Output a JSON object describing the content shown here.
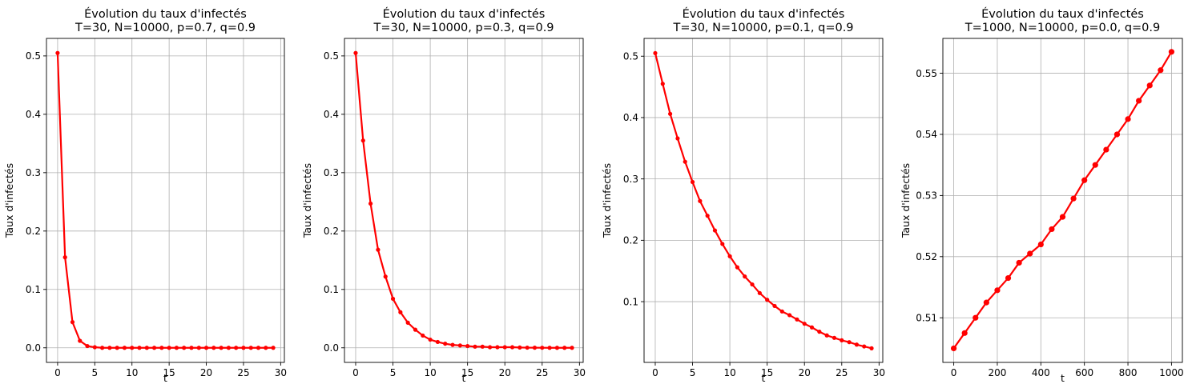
{
  "chart_data": [
    {
      "type": "line",
      "title": "Évolution du taux d'infectés",
      "subtitle": "T=30, N=10000, p=0.7, q=0.9",
      "xlabel": "t",
      "ylabel": "Taux d'infectés",
      "xlim": [
        -1.5,
        30.5
      ],
      "ylim": [
        -0.025,
        0.53
      ],
      "xticks": [
        0,
        5,
        10,
        15,
        20,
        25,
        30
      ],
      "yticks": [
        0.0,
        0.1,
        0.2,
        0.3,
        0.4,
        0.5
      ],
      "ytick_labels": [
        "0.0",
        "0.1",
        "0.2",
        "0.3",
        "0.4",
        "0.5"
      ],
      "grid": true,
      "color": "#ff0000",
      "marker": true,
      "series": [
        {
          "x": [
            0,
            1,
            2,
            3,
            4,
            5,
            6,
            7,
            8,
            9,
            10,
            11,
            12,
            13,
            14,
            15,
            16,
            17,
            18,
            19,
            20,
            21,
            22,
            23,
            24,
            25,
            26,
            27,
            28,
            29
          ],
          "values": [
            0.505,
            0.155,
            0.044,
            0.012,
            0.003,
            0.001,
            0,
            0,
            0,
            0,
            0,
            0,
            0,
            0,
            0,
            0,
            0,
            0,
            0,
            0,
            0,
            0,
            0,
            0,
            0,
            0,
            0,
            0,
            0,
            0
          ]
        }
      ]
    },
    {
      "type": "line",
      "title": "Évolution du taux d'infectés",
      "subtitle": "T=30, N=10000, p=0.3, q=0.9",
      "xlabel": "t",
      "ylabel": "Taux d'infectés",
      "xlim": [
        -1.5,
        30.5
      ],
      "ylim": [
        -0.025,
        0.53
      ],
      "xticks": [
        0,
        5,
        10,
        15,
        20,
        25,
        30
      ],
      "yticks": [
        0.0,
        0.1,
        0.2,
        0.3,
        0.4,
        0.5
      ],
      "ytick_labels": [
        "0.0",
        "0.1",
        "0.2",
        "0.3",
        "0.4",
        "0.5"
      ],
      "grid": true,
      "color": "#ff0000",
      "marker": true,
      "series": [
        {
          "x": [
            0,
            1,
            2,
            3,
            4,
            5,
            6,
            7,
            8,
            9,
            10,
            11,
            12,
            13,
            14,
            15,
            16,
            17,
            18,
            19,
            20,
            21,
            22,
            23,
            24,
            25,
            26,
            27,
            28,
            29
          ],
          "values": [
            0.505,
            0.355,
            0.247,
            0.168,
            0.122,
            0.084,
            0.061,
            0.043,
            0.031,
            0.021,
            0.014,
            0.01,
            0.007,
            0.005,
            0.004,
            0.003,
            0.002,
            0.002,
            0.001,
            0.001,
            0.001,
            0.001,
            0.0005,
            0.0003,
            0.0002,
            0.0001,
            0,
            0,
            0,
            0
          ]
        }
      ]
    },
    {
      "type": "line",
      "title": "Évolution du taux d'infectés",
      "subtitle": "T=30, N=10000, p=0.1, q=0.9",
      "xlabel": "t",
      "ylabel": "Taux d'infectés",
      "xlim": [
        -1.5,
        30.5
      ],
      "ylim": [
        0.001,
        0.529
      ],
      "xticks": [
        0,
        5,
        10,
        15,
        20,
        25,
        30
      ],
      "yticks": [
        0.1,
        0.2,
        0.3,
        0.4,
        0.5
      ],
      "ytick_labels": [
        "0.1",
        "0.2",
        "0.3",
        "0.4",
        "0.5"
      ],
      "grid": true,
      "color": "#ff0000",
      "marker": true,
      "series": [
        {
          "x": [
            0,
            1,
            2,
            3,
            4,
            5,
            6,
            7,
            8,
            9,
            10,
            11,
            12,
            13,
            14,
            15,
            16,
            17,
            18,
            19,
            20,
            21,
            22,
            23,
            24,
            25,
            26,
            27,
            28,
            29
          ],
          "values": [
            0.505,
            0.455,
            0.406,
            0.366,
            0.328,
            0.295,
            0.264,
            0.24,
            0.216,
            0.194,
            0.174,
            0.156,
            0.141,
            0.128,
            0.114,
            0.103,
            0.093,
            0.084,
            0.078,
            0.071,
            0.064,
            0.058,
            0.051,
            0.045,
            0.041,
            0.037,
            0.034,
            0.03,
            0.027,
            0.024
          ]
        }
      ]
    },
    {
      "type": "line",
      "title": "Évolution du taux d'infectés",
      "subtitle": "T=1000, N=10000, p=0.0, q=0.9",
      "xlabel": "t",
      "ylabel": "Taux d'infectés",
      "xlim": [
        -50,
        1050
      ],
      "ylim": [
        0.5027,
        0.5557
      ],
      "xticks": [
        0,
        200,
        400,
        600,
        800,
        1000
      ],
      "yticks": [
        0.51,
        0.52,
        0.53,
        0.54,
        0.55
      ],
      "ytick_labels": [
        "0.51",
        "0.52",
        "0.53",
        "0.54",
        "0.55"
      ],
      "grid": true,
      "color": "#ff0000",
      "marker": true,
      "series": [
        {
          "x": [
            0,
            50,
            100,
            150,
            200,
            250,
            300,
            350,
            400,
            450,
            500,
            550,
            600,
            650,
            700,
            750,
            800,
            850,
            900,
            950,
            1000
          ],
          "values": [
            0.505,
            0.5075,
            0.51,
            0.5125,
            0.5145,
            0.5165,
            0.519,
            0.5205,
            0.522,
            0.5245,
            0.5265,
            0.5295,
            0.5325,
            0.535,
            0.5375,
            0.54,
            0.5425,
            0.5455,
            0.548,
            0.5505,
            0.5535
          ]
        }
      ]
    }
  ]
}
